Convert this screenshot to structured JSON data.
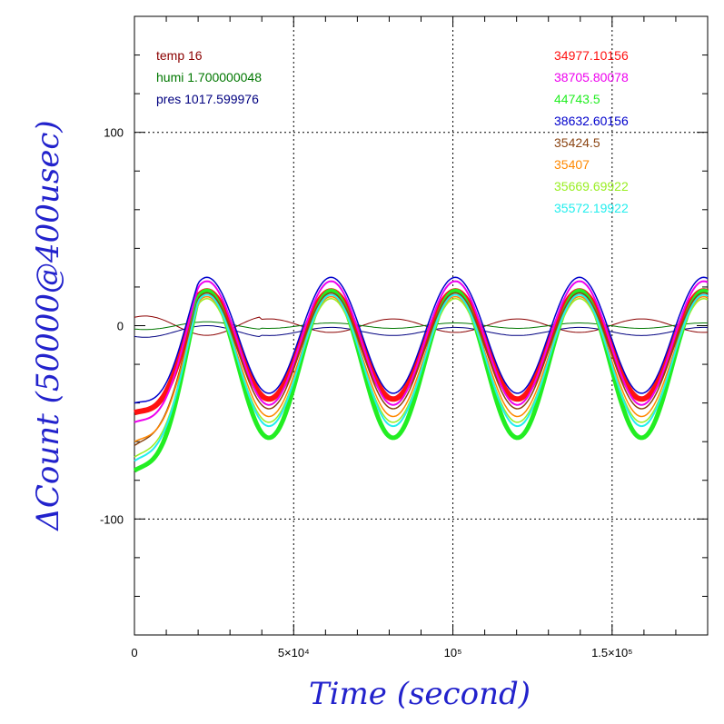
{
  "chart_data": {
    "type": "line",
    "xlabel": "Time (second)",
    "ylabel": "ΔCount (50000@400usec)",
    "xlim": [
      0,
      180000
    ],
    "ylim": [
      -160,
      160
    ],
    "grid": true,
    "x_ticks": [
      {
        "value": 0,
        "label": "0"
      },
      {
        "value": 50000,
        "label": "5×10⁴"
      },
      {
        "value": 100000,
        "label": "10⁵"
      },
      {
        "value": 150000,
        "label": "1.5×10⁵"
      }
    ],
    "y_ticks": [
      {
        "value": 100,
        "label": "100"
      },
      {
        "value": 0,
        "label": "0"
      },
      {
        "value": -100,
        "label": "-100"
      }
    ],
    "env_legend": [
      {
        "name": "temp",
        "value": "16",
        "color": "#8b0000"
      },
      {
        "name": "humi",
        "value": "1.700000048",
        "color": "#007700"
      },
      {
        "name": "pres",
        "value": "1017.599976",
        "color": "#000080"
      }
    ],
    "series": [
      {
        "name": "34977.10156",
        "color": "#ff1111",
        "amplitude": 28,
        "offset": -10,
        "width": 6,
        "start": -45
      },
      {
        "name": "38705.80078",
        "color": "#ee00ee",
        "amplitude": 32,
        "offset": -9,
        "width": 2,
        "start": -50
      },
      {
        "name": "44743.5",
        "color": "#22ee22",
        "amplitude": 38,
        "offset": -20,
        "width": 5,
        "start": -75
      },
      {
        "name": "38632.60156",
        "color": "#0000cc",
        "amplitude": 30,
        "offset": -5,
        "width": 1.5,
        "start": -40
      },
      {
        "name": "35424.5",
        "color": "#8b4513",
        "amplitude": 30,
        "offset": -13,
        "width": 1.5,
        "start": -62
      },
      {
        "name": "35407",
        "color": "#ff8800",
        "amplitude": 31,
        "offset": -16,
        "width": 1.5,
        "start": -60
      },
      {
        "name": "35669.69922",
        "color": "#99ee22",
        "amplitude": 32,
        "offset": -18,
        "width": 1.5,
        "start": -68
      },
      {
        "name": "35572.19922",
        "color": "#22eeee",
        "amplitude": 34,
        "offset": -18,
        "width": 2,
        "start": -70
      }
    ],
    "env_series": [
      {
        "name": "temp",
        "color": "#8b0000",
        "amplitude": 5,
        "phase": 3.14,
        "offset": 0
      },
      {
        "name": "humi",
        "color": "#007700",
        "amplitude": 2,
        "phase": 0,
        "offset": 0
      },
      {
        "name": "pres",
        "color": "#000080",
        "amplitude": 3,
        "phase": 0,
        "offset": -3
      }
    ],
    "period": 39000,
    "phase_shift": 13000
  }
}
